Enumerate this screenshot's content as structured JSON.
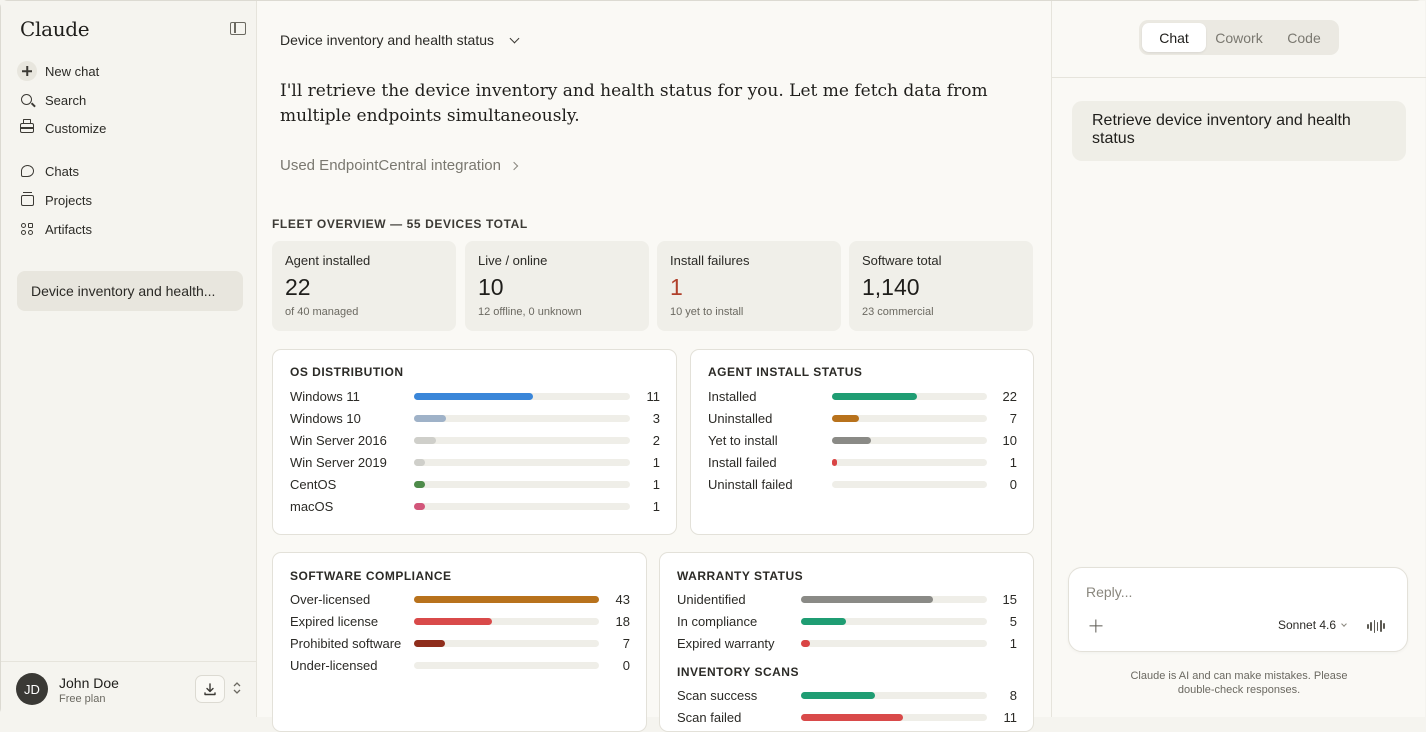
{
  "sidebar": {
    "brand": "Claude",
    "nav": {
      "new_chat": "New chat",
      "search": "Search",
      "customize": "Customize",
      "chats": "Chats",
      "projects": "Projects",
      "artifacts": "Artifacts"
    },
    "recent": [
      "Device inventory and health..."
    ],
    "user": {
      "initials": "JD",
      "name": "John Doe",
      "plan": "Free plan"
    }
  },
  "main": {
    "conversation_title": "Device inventory and health status",
    "assistant_message": "I'll retrieve the device inventory and health status for you. Let me fetch data from multiple endpoints simultaneously.",
    "integration_note": "Used EndpointCentral integration",
    "fleet": {
      "heading": "FLEET OVERVIEW — 55 DEVICES TOTAL",
      "cards": [
        {
          "label": "Agent installed",
          "value": "22",
          "sub": "of 40 managed"
        },
        {
          "label": "Live / online",
          "value": "10",
          "sub": "12 offline, 0 unknown"
        },
        {
          "label": "Install failures",
          "value": "1",
          "sub": "10 yet to install"
        },
        {
          "label": "Software total",
          "value": "1,140",
          "sub": "23 commercial"
        }
      ]
    },
    "os_distribution": {
      "title": "OS DISTRIBUTION",
      "rows": [
        {
          "label": "Windows 11",
          "value": 11,
          "fraction": 0.55,
          "color": "#3a86d9"
        },
        {
          "label": "Windows 10",
          "value": 3,
          "fraction": 0.15,
          "color": "#9fb2c8"
        },
        {
          "label": "Win Server 2016",
          "value": 2,
          "fraction": 0.1,
          "color": "#cfcfca"
        },
        {
          "label": "Win Server 2019",
          "value": 1,
          "fraction": 0.05,
          "color": "#cfcfca"
        },
        {
          "label": "CentOS",
          "value": 1,
          "fraction": 0.05,
          "color": "#4e8b4a"
        },
        {
          "label": "macOS",
          "value": 1,
          "fraction": 0.05,
          "color": "#d2567a"
        }
      ]
    },
    "agent_install": {
      "title": "AGENT INSTALL STATUS",
      "rows": [
        {
          "label": "Installed",
          "value": 22,
          "fraction": 0.55,
          "color": "#1f9d73"
        },
        {
          "label": "Uninstalled",
          "value": 7,
          "fraction": 0.175,
          "color": "#b8721c"
        },
        {
          "label": "Yet to install",
          "value": 10,
          "fraction": 0.25,
          "color": "#8a8a86"
        },
        {
          "label": "Install failed",
          "value": 1,
          "fraction": 0.025,
          "color": "#d94545"
        },
        {
          "label": "Uninstall failed",
          "value": 0,
          "fraction": 0,
          "color": "#cfcfca"
        }
      ]
    },
    "software_compliance": {
      "title": "SOFTWARE COMPLIANCE",
      "rows": [
        {
          "label": "Over-licensed",
          "value": 43,
          "fraction": 1.0,
          "color": "#b8721c"
        },
        {
          "label": "Expired license",
          "value": 18,
          "fraction": 0.42,
          "color": "#d94a4a"
        },
        {
          "label": "Prohibited software",
          "value": 7,
          "fraction": 0.17,
          "color": "#8f2e1c"
        },
        {
          "label": "Under-licensed",
          "value": 0,
          "fraction": 0,
          "color": "#cfcfca"
        }
      ]
    },
    "warranty": {
      "title": "WARRANTY STATUS",
      "rows": [
        {
          "label": "Unidentified",
          "value": 15,
          "fraction": 0.71,
          "color": "#8a8a86"
        },
        {
          "label": "In compliance",
          "value": 5,
          "fraction": 0.24,
          "color": "#1f9d73"
        },
        {
          "label": "Expired warranty",
          "value": 1,
          "fraction": 0.05,
          "color": "#d94545"
        }
      ]
    },
    "inventory_scans": {
      "title": "INVENTORY SCANS",
      "rows": [
        {
          "label": "Scan success",
          "value": 8,
          "fraction": 0.4,
          "color": "#1f9d73"
        },
        {
          "label": "Scan failed",
          "value": 11,
          "fraction": 0.55,
          "color": "#d94a4a"
        }
      ]
    }
  },
  "right": {
    "tabs": [
      "Chat",
      "Cowork",
      "Code"
    ],
    "active_tab": "Chat",
    "user_message": "Retrieve device inventory and health status",
    "reply_placeholder": "Reply...",
    "model": "Sonnet 4.6",
    "disclaimer": "Claude is AI and can make mistakes. Please double-check responses."
  }
}
